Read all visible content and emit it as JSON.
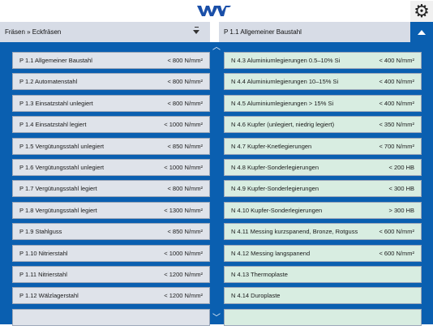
{
  "header": {
    "logo": "WVT",
    "settings_icon": "gear-icon"
  },
  "selectors": {
    "left": "Fräsen » Eckfräsen",
    "right": "P 1.1 Allgemeiner Baustahl"
  },
  "colors": {
    "accent": "#0a5fb0",
    "p_group": "#dfe3ea",
    "n_group": "#d8ede1",
    "selector_bg": "#d7dce6"
  },
  "left_list": [
    {
      "label": "P 1.1 Allgemeiner Baustahl",
      "value": "< 800 N/mm²"
    },
    {
      "label": "P 1.2 Automatenstahl",
      "value": "< 800 N/mm²"
    },
    {
      "label": "P 1.3 Einsatzstahl unlegiert",
      "value": "< 800 N/mm²"
    },
    {
      "label": "P 1.4 Einsatzstahl legiert",
      "value": "< 1000 N/mm²"
    },
    {
      "label": "P 1.5 Vergütungsstahl unlegiert",
      "value": "< 850 N/mm²"
    },
    {
      "label": "P 1.6 Vergütungsstahl unlegiert",
      "value": "< 1000 N/mm²"
    },
    {
      "label": "P 1.7 Vergütungsstahl legiert",
      "value": "< 800 N/mm²"
    },
    {
      "label": "P 1.8 Vergütungsstahl legiert",
      "value": "< 1300 N/mm²"
    },
    {
      "label": "P 1.9 Stahlguss",
      "value": "< 850 N/mm²"
    },
    {
      "label": "P 1.10 Nitrierstahl",
      "value": "< 1000 N/mm²"
    },
    {
      "label": "P 1.11 Nitrierstahl",
      "value": "< 1200 N/mm²"
    },
    {
      "label": "P 1.12 Wälzlagerstahl",
      "value": "< 1200 N/mm²"
    },
    {
      "label": "",
      "value": ""
    }
  ],
  "right_list": [
    {
      "label": "N 4.3 Aluminiumlegierungen 0.5–10% Si",
      "value": "< 400 N/mm²"
    },
    {
      "label": "N 4.4 Aluminiumlegierungen 10–15% Si",
      "value": "< 400 N/mm²"
    },
    {
      "label": "N 4.5 Aluminiumlegierungen > 15% Si",
      "value": "< 400 N/mm²"
    },
    {
      "label": "N 4.6 Kupfer (unlegiert, niedrig legiert)",
      "value": "< 350 N/mm²"
    },
    {
      "label": "N 4.7 Kupfer-Knetlegierungen",
      "value": "< 700 N/mm²"
    },
    {
      "label": "N 4.8 Kupfer-Sonderlegierungen",
      "value": "< 200 HB"
    },
    {
      "label": "N 4.9 Kupfer-Sonderlegierungen",
      "value": "< 300 HB"
    },
    {
      "label": "N 4.10 Kupfer-Sonderlegierungen",
      "value": "> 300 HB"
    },
    {
      "label": "N 4.11 Messing kurzspanend, Bronze, Rotguss",
      "value": "< 600 N/mm²"
    },
    {
      "label": "N 4.12 Messing langspanend",
      "value": "< 600 N/mm²"
    },
    {
      "label": "N 4.13 Thermoplaste",
      "value": ""
    },
    {
      "label": "N 4.14 Duroplaste",
      "value": ""
    },
    {
      "label": "",
      "value": ""
    }
  ]
}
